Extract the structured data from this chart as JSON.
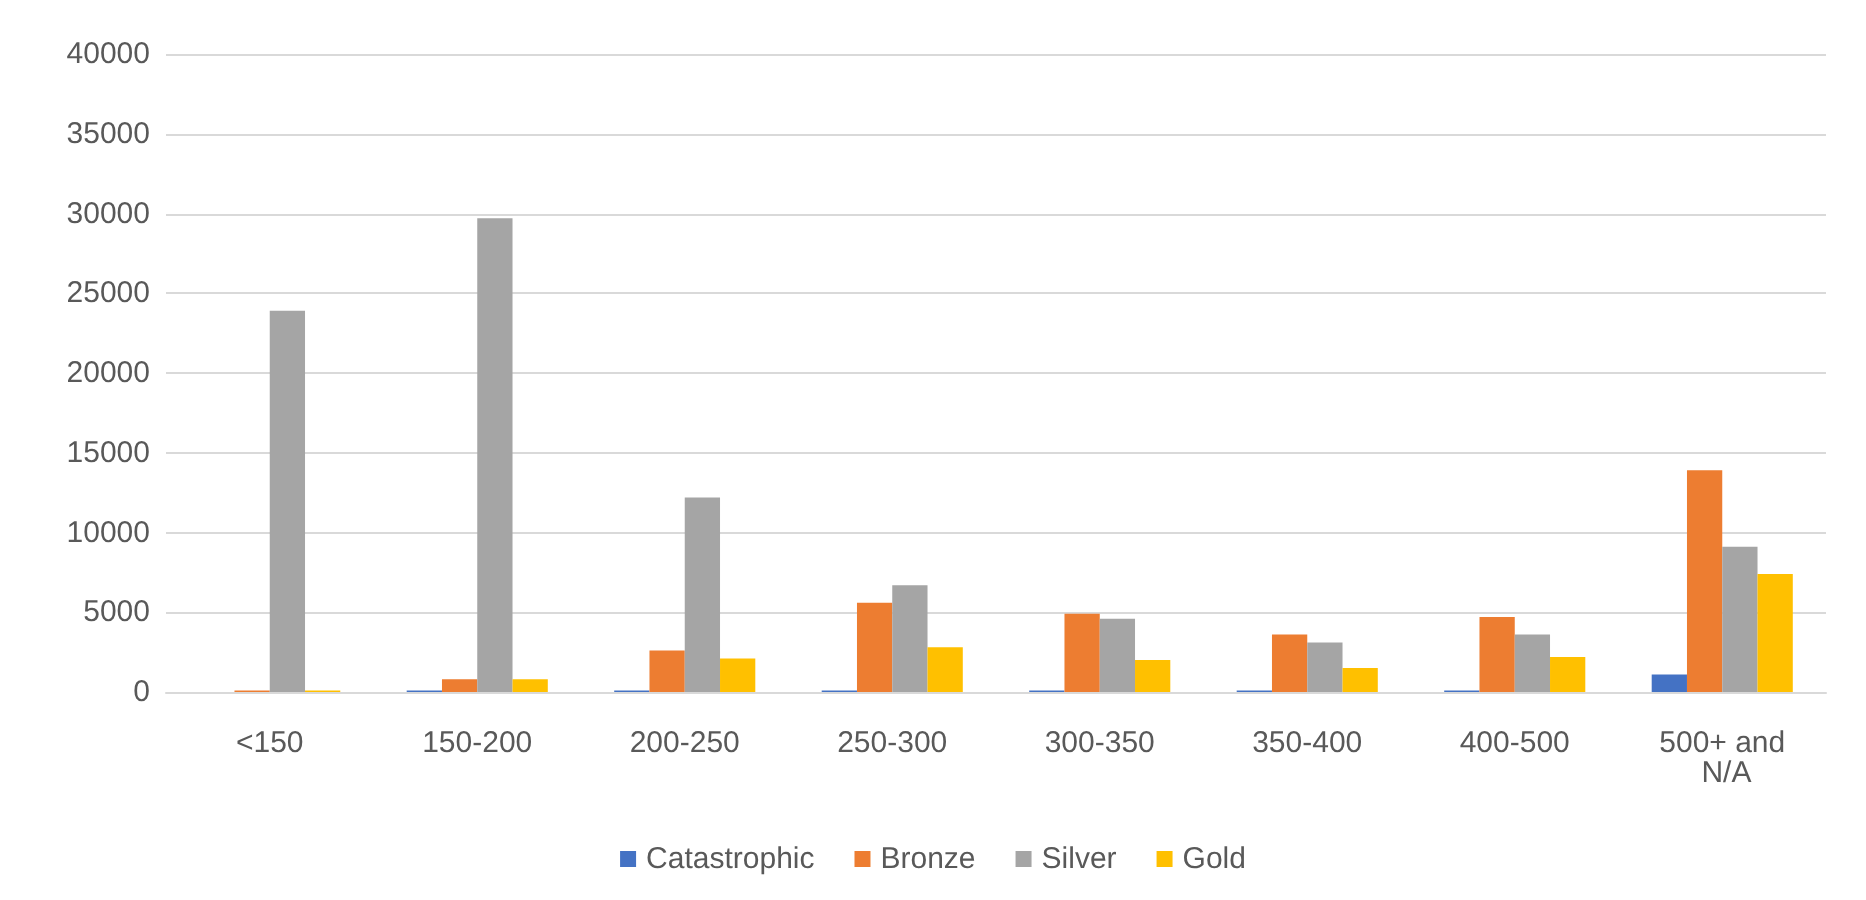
{
  "chart_data": {
    "type": "bar",
    "categories": [
      "<150",
      "150-200",
      "200-250",
      "250-300",
      "300-350",
      "350-400",
      "400-500",
      "500+ and N/A"
    ],
    "series": [
      {
        "name": "Catastrophic",
        "color": "#4472c4",
        "values": [
          0,
          100,
          100,
          100,
          100,
          100,
          100,
          1100
        ]
      },
      {
        "name": "Bronze",
        "color": "#ed7d31",
        "values": [
          100,
          800,
          2600,
          5600,
          4900,
          3600,
          4700,
          13900
        ]
      },
      {
        "name": "Silver",
        "color": "#a5a5a5",
        "values": [
          23900,
          29700,
          12200,
          6700,
          4600,
          3100,
          3600,
          9100
        ]
      },
      {
        "name": "Gold",
        "color": "#ffc000",
        "values": [
          100,
          800,
          2100,
          2800,
          2000,
          1500,
          2200,
          7400
        ]
      }
    ],
    "ylim": [
      0,
      40000
    ],
    "yticks": [
      0,
      5000,
      10000,
      15000,
      20000,
      25000,
      30000,
      35000,
      40000
    ],
    "grid": "y",
    "legend": "bottom"
  }
}
